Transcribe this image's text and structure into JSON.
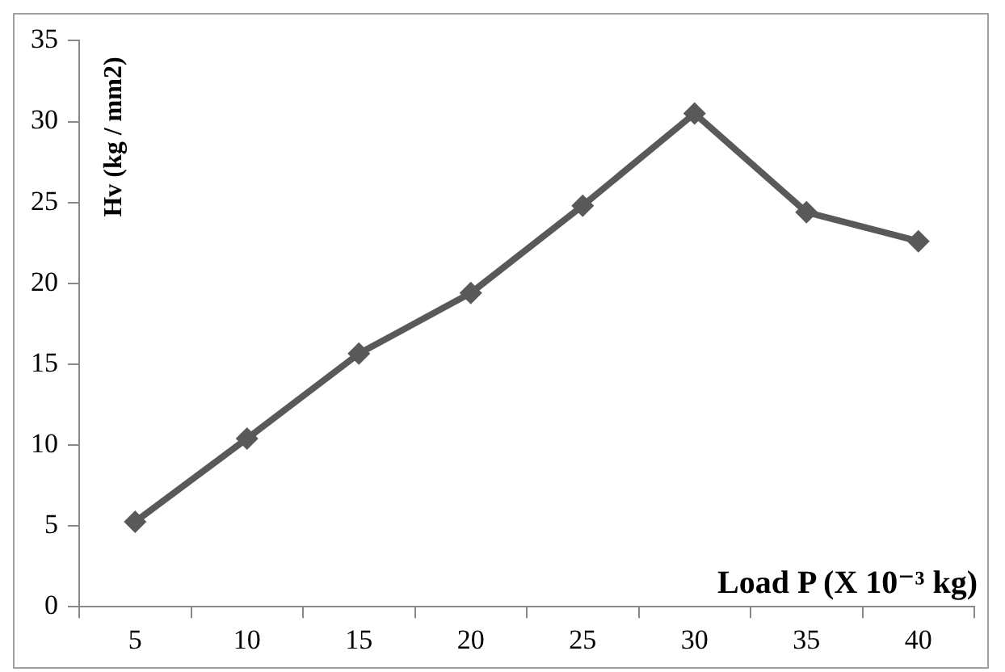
{
  "chart_data": {
    "type": "line",
    "xlabel": "Load P (X 10⁻³ kg)",
    "ylabel": "Hv (kg / mm2)",
    "categories": [
      "5",
      "10",
      "15",
      "20",
      "25",
      "30",
      "35",
      "40"
    ],
    "series": [
      {
        "color": "#595959",
        "values": [
          5.25,
          10.4,
          15.65,
          19.4,
          24.8,
          30.5,
          24.4,
          22.6
        ]
      }
    ],
    "ylim": [
      0,
      35
    ],
    "yticks": [
      0,
      5,
      10,
      15,
      20,
      25,
      30,
      35
    ],
    "grid": false,
    "legend": false,
    "marker": "diamond",
    "line_style": "solid"
  }
}
